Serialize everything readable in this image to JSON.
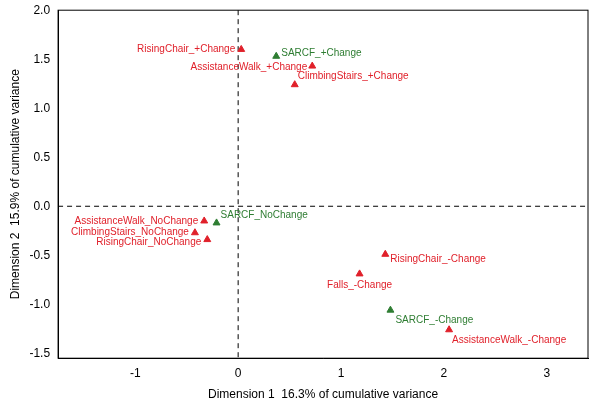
{
  "chart_data": {
    "type": "scatter",
    "xlabel": "Dimension 1  16.3% of cumulative variance",
    "ylabel": "Dimension 2  15.9% of cumulative variance",
    "marker": "triangle",
    "grid": false,
    "labels": [
      "RisingChair_+Change",
      "SARCF_+Change",
      "AssistanceWalk_+Change",
      "ClimbingStairs_+Change",
      "AssistanceWalk_NoChange",
      "SARCF_NoChange",
      "ClimbingStairs_NoChange",
      "RisingChair_NoChange",
      "RisingChair_-Change",
      "Falls_-Change",
      "SARCF_-Change",
      "AssistanceWalk_-Change"
    ],
    "x": [
      0.03,
      0.37,
      0.72,
      0.55,
      -0.33,
      -0.21,
      -0.42,
      -0.3,
      1.43,
      1.18,
      1.48,
      2.05
    ],
    "y": [
      1.6,
      1.53,
      1.43,
      1.24,
      -0.15,
      -0.17,
      -0.27,
      -0.34,
      -0.49,
      -0.69,
      -1.06,
      -1.26
    ],
    "colors": [
      "#e0202a",
      "#2e7d32",
      "#e0202a",
      "#e0202a",
      "#e0202a",
      "#2e7d32",
      "#e0202a",
      "#e0202a",
      "#e0202a",
      "#e0202a",
      "#2e7d32",
      "#e0202a"
    ],
    "xlim": [
      -1.75,
      3.4
    ],
    "ylim": [
      -1.55,
      2.0
    ],
    "xticks": [
      -1,
      0,
      1,
      2,
      3
    ],
    "yticks": [
      -1.5,
      {
        "value": -1,
        "label": "-1.0"
      },
      -0.5,
      {
        "value": 0,
        "label": "0.0"
      },
      0.5,
      {
        "value": 1,
        "label": "1.0"
      },
      1.5,
      {
        "value": 2,
        "label": "2.0"
      }
    ],
    "hlines": [
      0
    ],
    "vlines": [
      0
    ],
    "line_style": "dashed"
  }
}
